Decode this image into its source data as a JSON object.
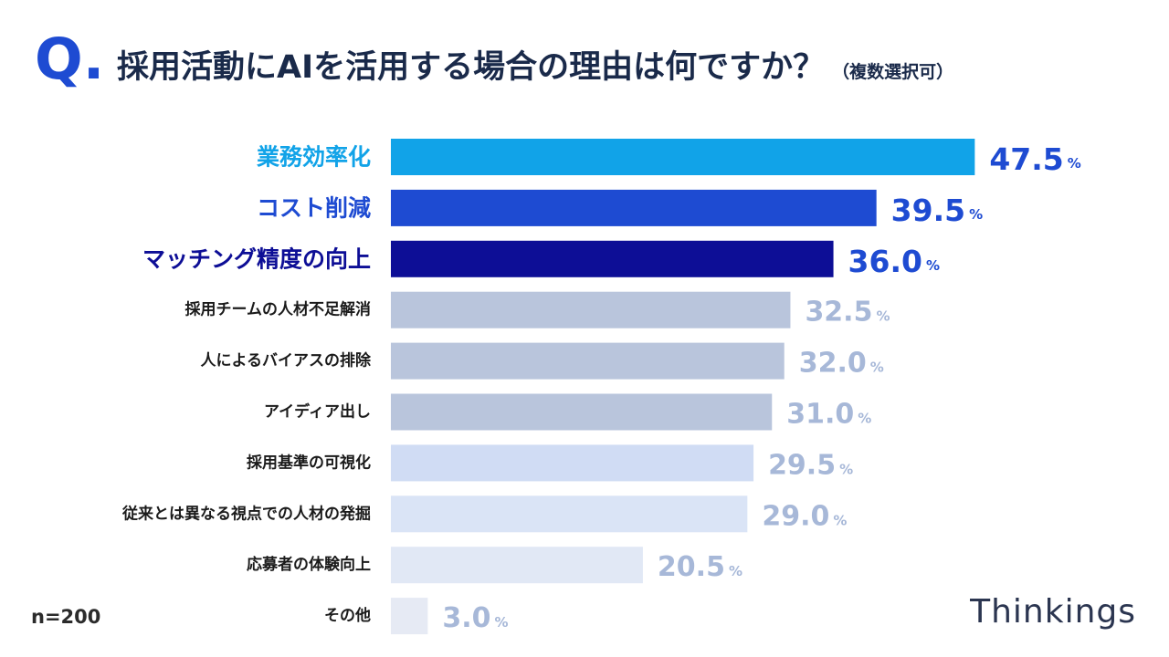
{
  "header": {
    "q_letter": "Q",
    "q_dot": ".",
    "title": "採用活動にAIを活用する場合の理由は何ですか？",
    "subtitle": "（複数選択可）"
  },
  "footer": {
    "sample_size": "n=200",
    "brand": "Thinkings"
  },
  "chart_data": {
    "type": "bar",
    "orientation": "horizontal",
    "title": "採用活動にAIを活用する場合の理由は何ですか？",
    "unit": "%",
    "xlim": [
      0,
      50
    ],
    "categories": [
      "業務効率化",
      "コスト削減",
      "マッチング精度の向上",
      "採用チームの人材不足解消",
      "人によるバイアスの排除",
      "アイディア出し",
      "採用基準の可視化",
      "従来とは異なる視点での人材の発掘",
      "応募者の体験向上",
      "その他"
    ],
    "values": [
      47.5,
      39.5,
      36.0,
      32.5,
      32.0,
      31.0,
      29.5,
      29.0,
      20.5,
      3.0
    ],
    "value_labels": [
      "47.5",
      "39.5",
      "36.0",
      "32.5",
      "32.0",
      "31.0",
      "29.5",
      "29.0",
      "20.5",
      "3.0"
    ],
    "bar_colors": [
      "#11a3e8",
      "#1e4bd2",
      "#0d0e96",
      "#b9c5dc",
      "#b9c5dc",
      "#b9c5dc",
      "#d0dcf4",
      "#dae4f6",
      "#e1e8f5",
      "#e6eaf4"
    ],
    "label_colors": [
      "#11a3e8",
      "#1e4bd2",
      "#0d0e96",
      "#1b1b1b",
      "#1b1b1b",
      "#1b1b1b",
      "#1b1b1b",
      "#1b1b1b",
      "#1b1b1b",
      "#1b1b1b"
    ],
    "value_colors": [
      "#1e4bd2",
      "#1e4bd2",
      "#1e4bd2",
      "#a7b8d8",
      "#a7b8d8",
      "#a7b8d8",
      "#a7b8d8",
      "#a7b8d8",
      "#a7b8d8",
      "#a7b8d8"
    ],
    "highlight_top": 3
  }
}
